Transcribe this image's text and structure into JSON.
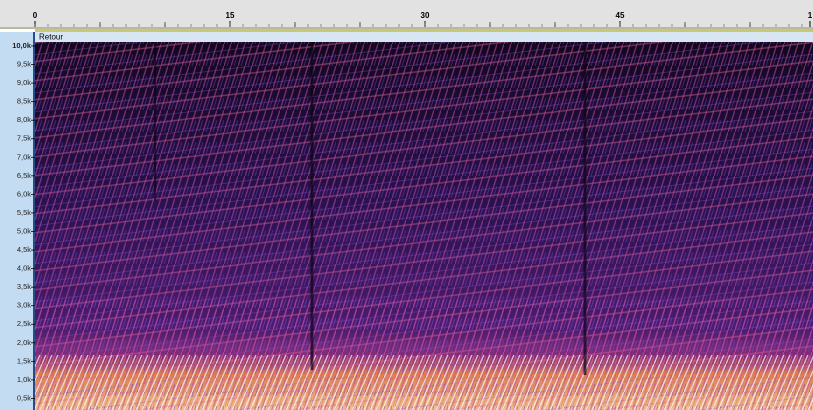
{
  "ruler": {
    "labels": [
      "0",
      "15",
      "30",
      "45",
      "1"
    ]
  },
  "track": {
    "name": "Retour"
  },
  "frequency_axis": {
    "labels": [
      "10,0k",
      "9,5k",
      "9,0k",
      "8,5k",
      "8,0k",
      "7,5k",
      "7,0k",
      "6,5k",
      "6,0k",
      "5,5k",
      "5,0k",
      "4,5k",
      "4,0k",
      "3,5k",
      "3,0k",
      "2,5k",
      "2,0k",
      "1,5k",
      "1,0k",
      "0,5k"
    ]
  }
}
